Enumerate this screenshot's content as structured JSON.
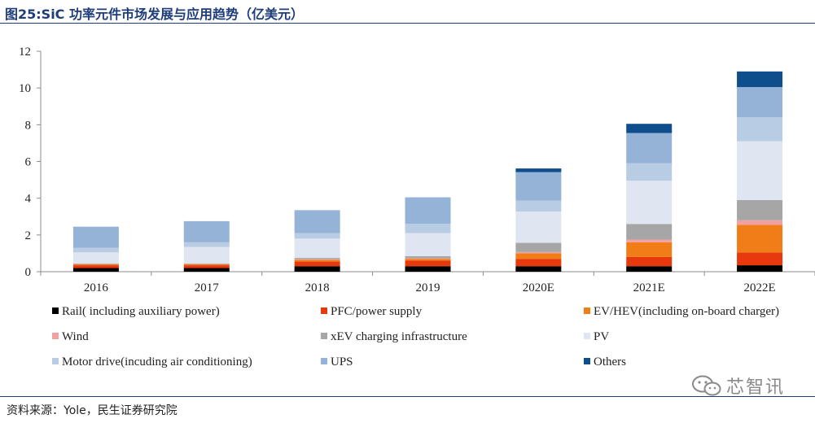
{
  "header": {
    "title": "图25:SiC 功率元件市场发展与应用趋势（亿美元）"
  },
  "footer": {
    "source": "资料来源：Yole，民生证券研究院",
    "watermark": "芯智讯",
    "watermark_icon": "wechat-icon"
  },
  "chart_data": {
    "type": "bar",
    "stacked": true,
    "title": "",
    "xlabel": "",
    "ylabel": "",
    "categories": [
      "2016",
      "2017",
      "2018",
      "2019",
      "2020E",
      "2021E",
      "2022E"
    ],
    "ylim": [
      0,
      12
    ],
    "yticks": [
      0,
      2,
      4,
      6,
      8,
      10,
      12
    ],
    "grid": false,
    "legend_position": "bottom",
    "series": [
      {
        "name": "Rail( including auxiliary power)",
        "color": "#000000",
        "values": [
          0.2,
          0.2,
          0.3,
          0.3,
          0.3,
          0.3,
          0.35
        ]
      },
      {
        "name": "PFC/power supply",
        "color": "#e8380d",
        "values": [
          0.15,
          0.15,
          0.25,
          0.3,
          0.4,
          0.5,
          0.7
        ]
      },
      {
        "name": "EV/HEV(including on-board charger)",
        "color": "#f07d18",
        "values": [
          0.05,
          0.05,
          0.1,
          0.1,
          0.3,
          0.8,
          1.5
        ]
      },
      {
        "name": "Wind",
        "color": "#f3a0a0",
        "values": [
          0.02,
          0.02,
          0.03,
          0.03,
          0.07,
          0.15,
          0.25
        ]
      },
      {
        "name": "xEV charging infrastructure",
        "color": "#a6a6a6",
        "values": [
          0.03,
          0.03,
          0.07,
          0.12,
          0.5,
          0.85,
          1.1
        ]
      },
      {
        "name": "PV",
        "color": "#dfe6f1",
        "values": [
          0.6,
          0.9,
          1.05,
          1.25,
          1.7,
          2.35,
          3.2
        ]
      },
      {
        "name": "Motor drive(incuding air conditioning)",
        "color": "#b8cce4",
        "values": [
          0.25,
          0.25,
          0.3,
          0.5,
          0.6,
          0.95,
          1.3
        ]
      },
      {
        "name": "UPS",
        "color": "#95b3d7",
        "values": [
          1.15,
          1.15,
          1.25,
          1.45,
          1.55,
          1.65,
          1.65
        ]
      },
      {
        "name": "Others",
        "color": "#0f4e8c",
        "values": [
          0.0,
          0.0,
          0.0,
          0.0,
          0.2,
          0.5,
          0.85
        ]
      }
    ]
  }
}
